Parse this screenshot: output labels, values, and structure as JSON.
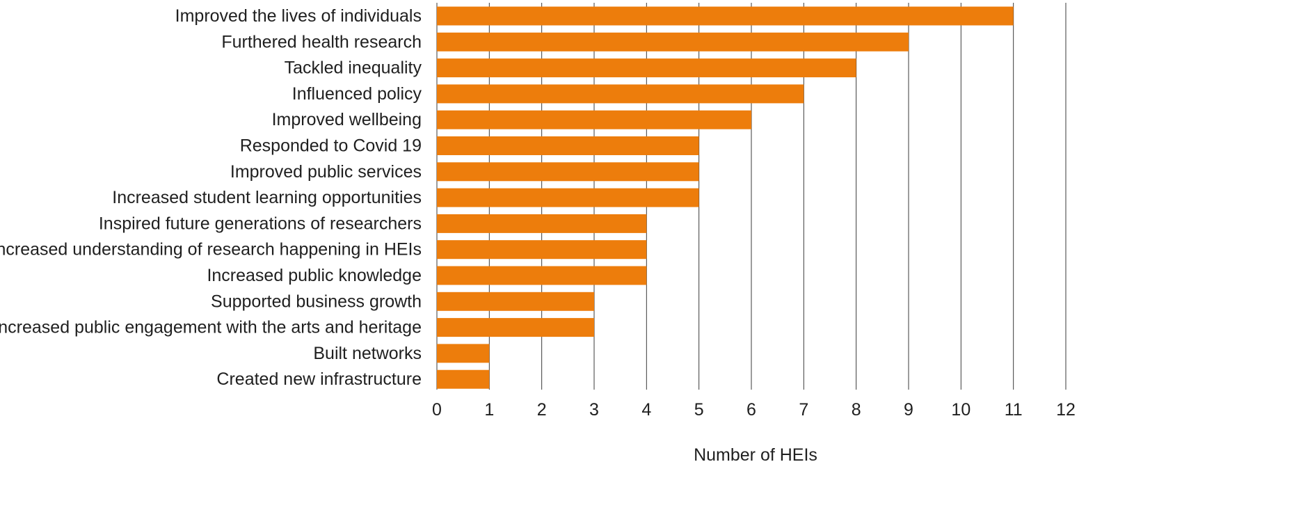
{
  "chart_data": {
    "type": "bar",
    "orientation": "horizontal",
    "categories": [
      "Improved the lives of individuals",
      "Furthered health research",
      "Tackled inequality",
      "Influenced policy",
      "Improved wellbeing",
      "Responded to Covid 19",
      "Improved public services",
      "Increased student learning opportunities",
      "Inspired future generations of researchers",
      "Increased understanding of research happening in HEIs",
      "Increased public knowledge",
      "Supported business growth",
      "Increased public engagement with the arts and heritage",
      "Built networks",
      "Created new infrastructure"
    ],
    "values": [
      11,
      9,
      8,
      7,
      6,
      5,
      5,
      5,
      4,
      4,
      4,
      3,
      3,
      1,
      1
    ],
    "title": "",
    "xlabel": "Number of HEIs",
    "ylabel": "",
    "xlim": [
      0,
      12
    ],
    "xticks": [
      "0",
      "1",
      "2",
      "3",
      "4",
      "5",
      "6",
      "7",
      "8",
      "9",
      "10",
      "11",
      "12"
    ],
    "grid": "vertical",
    "legend": "none",
    "colors": {
      "bar": "#ED7D0C",
      "grid": "#3a3a3a",
      "text": "#1f1f1f"
    }
  }
}
